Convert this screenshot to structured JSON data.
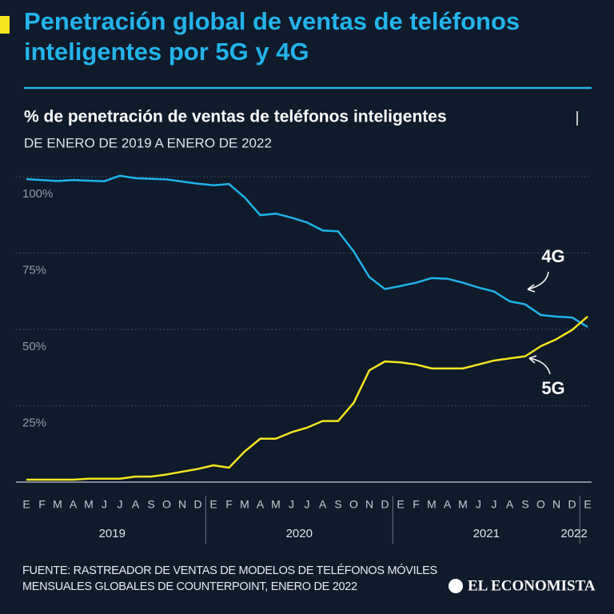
{
  "chart_data": {
    "type": "line",
    "title": "Penetración global de ventas de teléfonos inteligentes por 5G y 4G",
    "subtitle": "% de penetración de ventas de teléfonos inteligentes",
    "date_range": "DE ENERO DE 2019 A ENERO DE 2022",
    "categories": [
      "E",
      "F",
      "M",
      "A",
      "M",
      "J",
      "J",
      "A",
      "S",
      "O",
      "N",
      "D",
      "E",
      "F",
      "M",
      "A",
      "M",
      "J",
      "J",
      "A",
      "S",
      "O",
      "N",
      "D",
      "E",
      "F",
      "M",
      "A",
      "M",
      "J",
      "J",
      "A",
      "S",
      "O",
      "N",
      "D",
      "E"
    ],
    "years": [
      "2019",
      "2020",
      "2021",
      "2022"
    ],
    "series": [
      {
        "name": "4G",
        "color": "#1fb3e8",
        "values": [
          99.2,
          98.9,
          98.6,
          98.9,
          98.7,
          98.5,
          100.3,
          99.5,
          99.3,
          99.1,
          98.4,
          97.7,
          97.2,
          97.6,
          93.2,
          87.4,
          87.9,
          86.6,
          85.0,
          82.4,
          82.1,
          75.5,
          67.1,
          63.2,
          64.2,
          65.3,
          66.8,
          66.6,
          65.3,
          63.7,
          62.4,
          59.2,
          58.2,
          54.7,
          54.2,
          53.9,
          50.8
        ]
      },
      {
        "name": "5G",
        "color": "#f5e61e",
        "values": [
          0.8,
          0.8,
          0.8,
          0.8,
          1.1,
          1.1,
          1.1,
          1.8,
          1.8,
          2.5,
          3.4,
          4.3,
          5.5,
          4.7,
          10,
          14.2,
          14.2,
          16.3,
          17.8,
          20,
          20,
          26,
          36.6,
          39.5,
          39.2,
          38.5,
          37.2,
          37.2,
          37.2,
          38.5,
          39.8,
          40.5,
          41.2,
          44.5,
          46.8,
          49.8,
          54.2
        ]
      }
    ],
    "ylim": [
      0,
      100
    ],
    "yticks": [
      {
        "value": 25,
        "label": "25%"
      },
      {
        "value": 50,
        "label": "50%"
      },
      {
        "value": 75,
        "label": "75%"
      },
      {
        "value": 100,
        "label": "100%"
      }
    ],
    "grid": true,
    "source": "FUENTE: RASTREADOR DE VENTAS DE MODELOS DE TELÉFONOS MÓVILES MENSUALES GLOBALES DE COUNTERPOINT, ENERO DE 2022",
    "brand": "EL ECONOMISTA"
  }
}
